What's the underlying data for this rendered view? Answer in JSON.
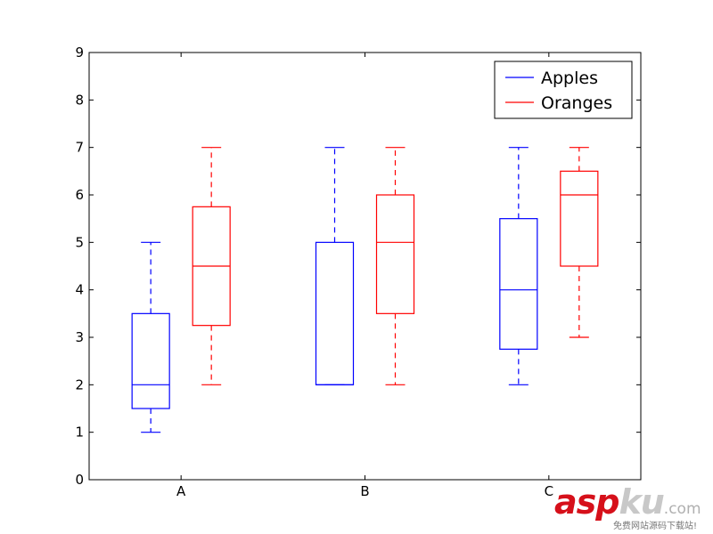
{
  "chart_data": {
    "type": "boxplot",
    "title": "",
    "xlabel": "",
    "ylabel": "",
    "ylim": [
      0,
      9
    ],
    "yticks": [
      0,
      1,
      2,
      3,
      4,
      5,
      6,
      7,
      8,
      9
    ],
    "categories": [
      "A",
      "B",
      "C"
    ],
    "legend_position": "top-right",
    "series": [
      {
        "name": "Apples",
        "color": "#0000ff",
        "boxes": [
          {
            "category": "A",
            "whisker_low": 1,
            "q1": 1.5,
            "median": 2,
            "q3": 3.5,
            "whisker_high": 5
          },
          {
            "category": "B",
            "whisker_low": 2,
            "q1": 2,
            "median": 2,
            "q3": 5,
            "whisker_high": 7
          },
          {
            "category": "C",
            "whisker_low": 2,
            "q1": 2.75,
            "median": 4,
            "q3": 5.5,
            "whisker_high": 7
          }
        ]
      },
      {
        "name": "Oranges",
        "color": "#ff0000",
        "boxes": [
          {
            "category": "A",
            "whisker_low": 2,
            "q1": 3.25,
            "median": 4.5,
            "q3": 5.75,
            "whisker_high": 7
          },
          {
            "category": "B",
            "whisker_low": 2,
            "q1": 3.5,
            "median": 5,
            "q3": 6,
            "whisker_high": 7
          },
          {
            "category": "C",
            "whisker_low": 3,
            "q1": 4.5,
            "median": 6,
            "q3": 6.5,
            "whisker_high": 7
          }
        ]
      }
    ]
  },
  "watermark": {
    "brand_red": "asp",
    "brand_gray": "ku",
    "suffix": ".com",
    "tagline": "免费网站源码下载站!"
  }
}
